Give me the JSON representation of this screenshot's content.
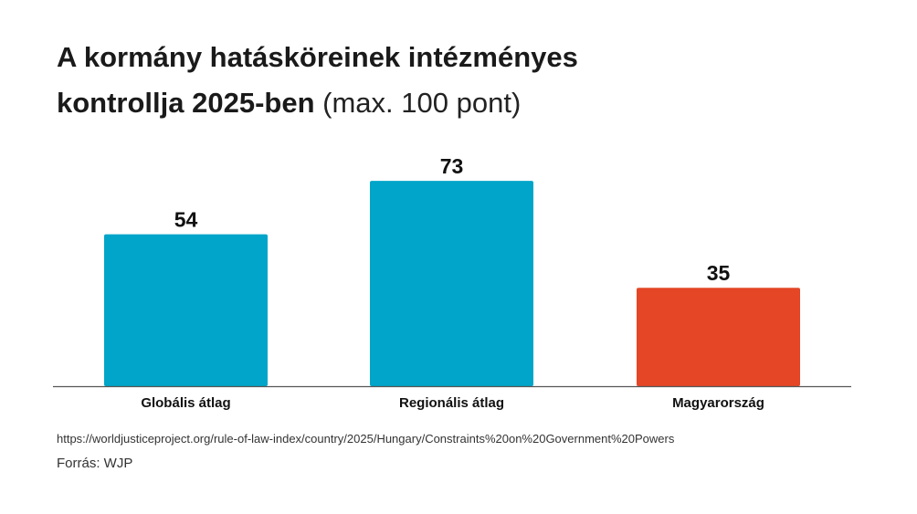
{
  "title": {
    "line1": "A kormány hatásköreinek intézményes",
    "line2_bold": "kontrollja 2025-ben",
    "line2_light": "(max. 100 pont)"
  },
  "chart_data": {
    "type": "bar",
    "title": "A kormány hatásköreinek intézményes kontrollja 2025-ben (max. 100 pont)",
    "categories": [
      "Globális átlag",
      "Regionális átlag",
      "Magyarország"
    ],
    "values": [
      54,
      73,
      35
    ],
    "colors": [
      "#00A5C9",
      "#00A5C9",
      "#E44626"
    ],
    "xlabel": "",
    "ylabel": "",
    "ylim": [
      0,
      100
    ],
    "grid": false
  },
  "footer": {
    "url": "https://worldjusticeproject.org/rule-of-law-index/country/2025/Hungary/Constraints%20on%20Government%20Powers",
    "source": "Forrás: WJP"
  }
}
